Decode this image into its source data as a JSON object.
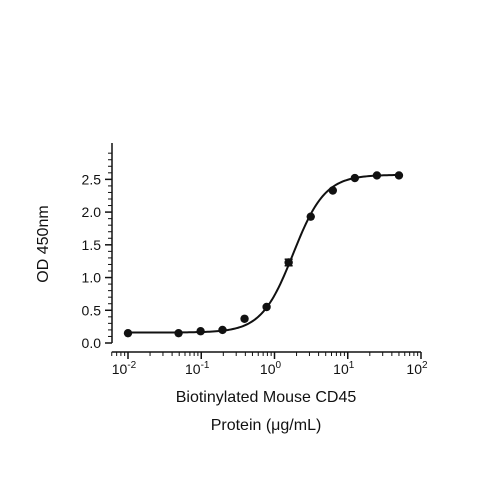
{
  "chart_data": {
    "type": "scatter",
    "title": "",
    "xlabel_lines": [
      "Biotinylated Mouse CD45",
      "Protein (μg/mL)"
    ],
    "ylabel": "OD 450nm",
    "x_scale": "log10",
    "xlim": [
      0.01,
      100
    ],
    "ylim": [
      0,
      2.75
    ],
    "x_ticks": [
      {
        "value": 0.01,
        "base": "10",
        "exp": "-2"
      },
      {
        "value": 0.1,
        "base": "10",
        "exp": "-1"
      },
      {
        "value": 1,
        "base": "10",
        "exp": "0"
      },
      {
        "value": 10,
        "base": "10",
        "exp": "1"
      },
      {
        "value": 100,
        "base": "10",
        "exp": "2"
      }
    ],
    "y_ticks": [
      {
        "value": 0.0,
        "label": "0.0"
      },
      {
        "value": 0.5,
        "label": "0.5"
      },
      {
        "value": 1.0,
        "label": "1.0"
      },
      {
        "value": 1.5,
        "label": "1.5"
      },
      {
        "value": 2.0,
        "label": "2.0"
      },
      {
        "value": 2.5,
        "label": "2.5"
      }
    ],
    "grid": false,
    "legend": "none",
    "colors": {
      "marker": "#111111",
      "curve": "#111111",
      "axis": "#111111"
    },
    "series": [
      {
        "x": [
          0.01,
          0.049,
          0.098,
          0.195,
          0.39,
          0.78,
          1.56,
          3.125,
          6.25,
          12.5,
          25,
          50
        ],
        "y": [
          0.15,
          0.15,
          0.18,
          0.2,
          0.37,
          0.55,
          1.23,
          1.93,
          2.33,
          2.52,
          2.56,
          2.56
        ],
        "y_error": [
          0,
          0,
          0,
          0,
          0,
          0,
          0.05,
          0,
          0,
          0,
          0,
          0
        ]
      }
    ],
    "fit": {
      "model": "4PL",
      "bottom": 0.16,
      "top": 2.57,
      "ec50": 1.8,
      "hill": 2.0
    }
  }
}
